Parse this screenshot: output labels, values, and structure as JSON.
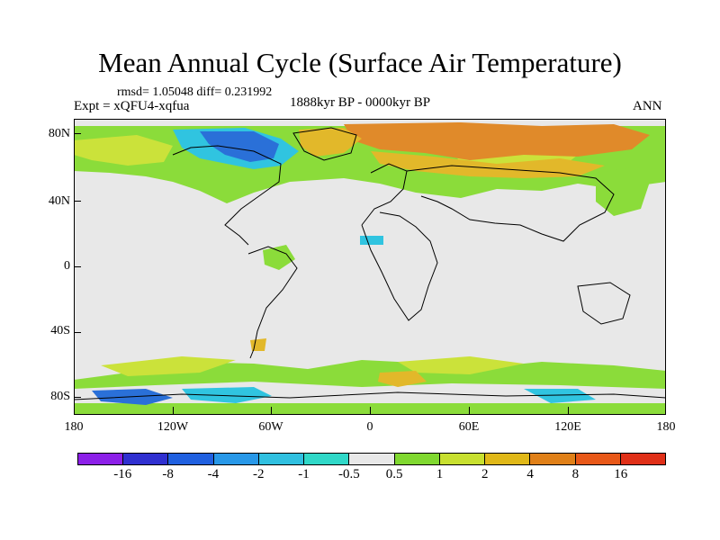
{
  "title": "Mean Annual Cycle (Surface Air Temperature)",
  "stats": "rmsd= 1.05048 diff= 0.231992",
  "experiment": "Expt = xQFU4-xqfua",
  "period": "1888kyr BP - 0000kyr BP",
  "season": "ANN",
  "map": {
    "y_labels": [
      "80N",
      "40N",
      "0",
      "40S",
      "80S"
    ],
    "x_labels": [
      "180",
      "120W",
      "60W",
      "0",
      "60E",
      "120E",
      "180"
    ]
  },
  "colorbar": {
    "colors": [
      "#8c20e8",
      "#3030d0",
      "#2060e0",
      "#2898e8",
      "#30c0e0",
      "#30d8c8",
      "#e8e8e8",
      "#80d830",
      "#c8e030",
      "#e0b818",
      "#e08018",
      "#e85818",
      "#e03018"
    ],
    "labels": [
      "-16",
      "-8",
      "-4",
      "-2",
      "-1",
      "-0.5",
      "0.5",
      "1",
      "2",
      "4",
      "8",
      "16"
    ]
  },
  "palette": {
    "green": "#8bdc3a",
    "yellowgreen": "#cbe23a",
    "gold": "#e2b82a",
    "orange": "#e08a2a",
    "cyan": "#30c4e0",
    "blue": "#2a70d8"
  }
}
